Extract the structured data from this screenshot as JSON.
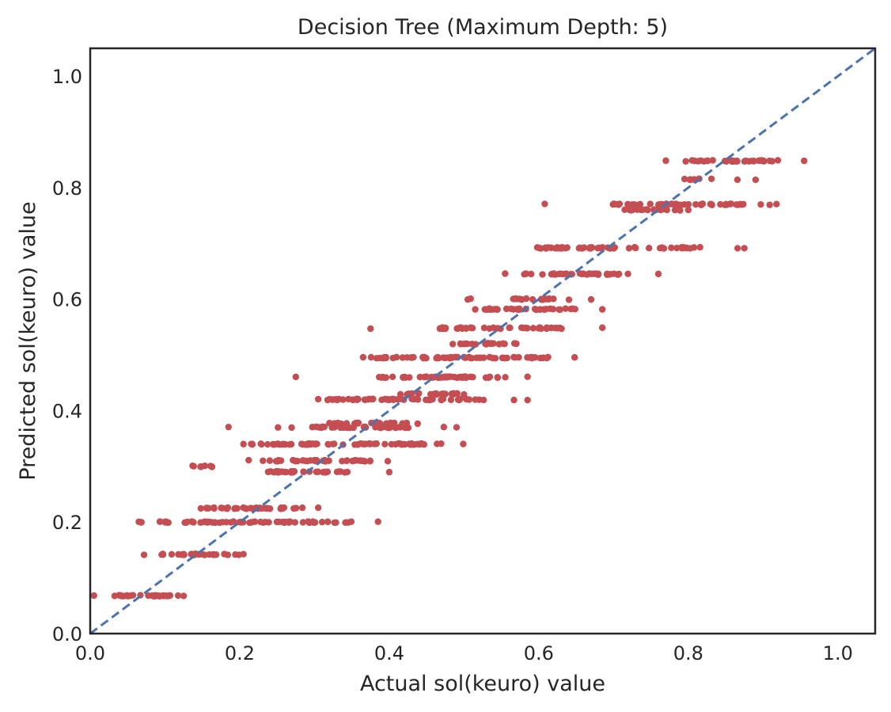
{
  "chart_data": {
    "type": "scatter",
    "title": "Decision Tree (Maximum Depth: 5)",
    "xlabel": "Actual sol(keuro) value",
    "ylabel": "Predicted sol(keuro) value",
    "xlim": [
      0.0,
      1.05
    ],
    "ylim": [
      0.0,
      1.05
    ],
    "xticks": [
      "0.0",
      "0.2",
      "0.4",
      "0.6",
      "0.8",
      "1.0"
    ],
    "yticks": [
      "0.0",
      "0.2",
      "0.4",
      "0.6",
      "0.8",
      "1.0"
    ],
    "grid": false,
    "marker_color": "#c44e52",
    "reference_line": {
      "style": "dashed",
      "color": "#4c72b0",
      "from": [
        0,
        0
      ],
      "to": [
        1.05,
        1.05
      ]
    },
    "bands": [
      {
        "y": 0.068,
        "x_points": [
          0.005,
          0.125
        ],
        "x_range": [
          0.022,
          0.118
        ]
      },
      {
        "y": 0.142,
        "x_points": [
          0.072,
          0.205
        ],
        "x_range": [
          0.095,
          0.2
        ]
      },
      {
        "y": 0.2,
        "x_points": [
          0.065,
          0.385
        ],
        "x_range": [
          0.066,
          0.35
        ]
      },
      {
        "y": 0.225,
        "x_points": [
          0.148,
          0.305
        ],
        "x_range": [
          0.15,
          0.285
        ]
      },
      {
        "y": 0.3,
        "x_points": [
          0.137,
          0.163
        ],
        "x_range": [
          0.137,
          0.163
        ]
      },
      {
        "y": 0.29,
        "x_points": [
          0.238,
          0.4
        ],
        "x_range": [
          0.24,
          0.35
        ]
      },
      {
        "y": 0.31,
        "x_points": [
          0.212,
          0.398
        ],
        "x_range": [
          0.23,
          0.38
        ]
      },
      {
        "y": 0.34,
        "x_points": [
          0.205,
          0.499
        ],
        "x_range": [
          0.21,
          0.47
        ]
      },
      {
        "y": 0.37,
        "x_points": [
          0.185,
          0.49
        ],
        "x_range": [
          0.295,
          0.43
        ]
      },
      {
        "y": 0.377,
        "x_points": [
          0.32,
          0.438
        ],
        "x_range": [
          0.325,
          0.43
        ]
      },
      {
        "y": 0.42,
        "x_points": [
          0.305,
          0.585
        ],
        "x_range": [
          0.315,
          0.525
        ]
      },
      {
        "y": 0.43,
        "x_points": [
          0.415,
          0.5
        ],
        "x_range": [
          0.42,
          0.49
        ]
      },
      {
        "y": 0.46,
        "x_points": [
          0.275,
          0.585
        ],
        "x_range": [
          0.385,
          0.56
        ]
      },
      {
        "y": 0.495,
        "x_points": [
          0.365,
          0.648
        ],
        "x_range": [
          0.375,
          0.62
        ]
      },
      {
        "y": 0.52,
        "x_points": [
          0.485,
          0.57
        ],
        "x_range": [
          0.495,
          0.56
        ]
      },
      {
        "y": 0.548,
        "x_points": [
          0.375,
          0.685
        ],
        "x_range": [
          0.465,
          0.64
        ]
      },
      {
        "y": 0.582,
        "x_points": [
          0.515,
          0.685
        ],
        "x_range": [
          0.52,
          0.65
        ]
      },
      {
        "y": 0.6,
        "x_points": [
          0.505,
          0.67
        ],
        "x_range": [
          0.555,
          0.62
        ]
      },
      {
        "y": 0.645,
        "x_points": [
          0.555,
          0.76
        ],
        "x_range": [
          0.58,
          0.72
        ]
      },
      {
        "y": 0.692,
        "x_points": [
          0.598,
          0.875
        ],
        "x_range": [
          0.6,
          0.82
        ]
      },
      {
        "y": 0.77,
        "x_points": [
          0.608,
          0.918
        ],
        "x_range": [
          0.7,
          0.88
        ]
      },
      {
        "y": 0.76,
        "x_points": [
          0.715,
          0.8
        ],
        "x_range": [
          0.72,
          0.79
        ]
      },
      {
        "y": 0.815,
        "x_points": [
          0.795,
          0.89
        ],
        "x_range": [
          0.8,
          0.81
        ]
      },
      {
        "y": 0.848,
        "x_points": [
          0.77,
          0.955
        ],
        "x_range": [
          0.79,
          0.92
        ]
      }
    ]
  }
}
